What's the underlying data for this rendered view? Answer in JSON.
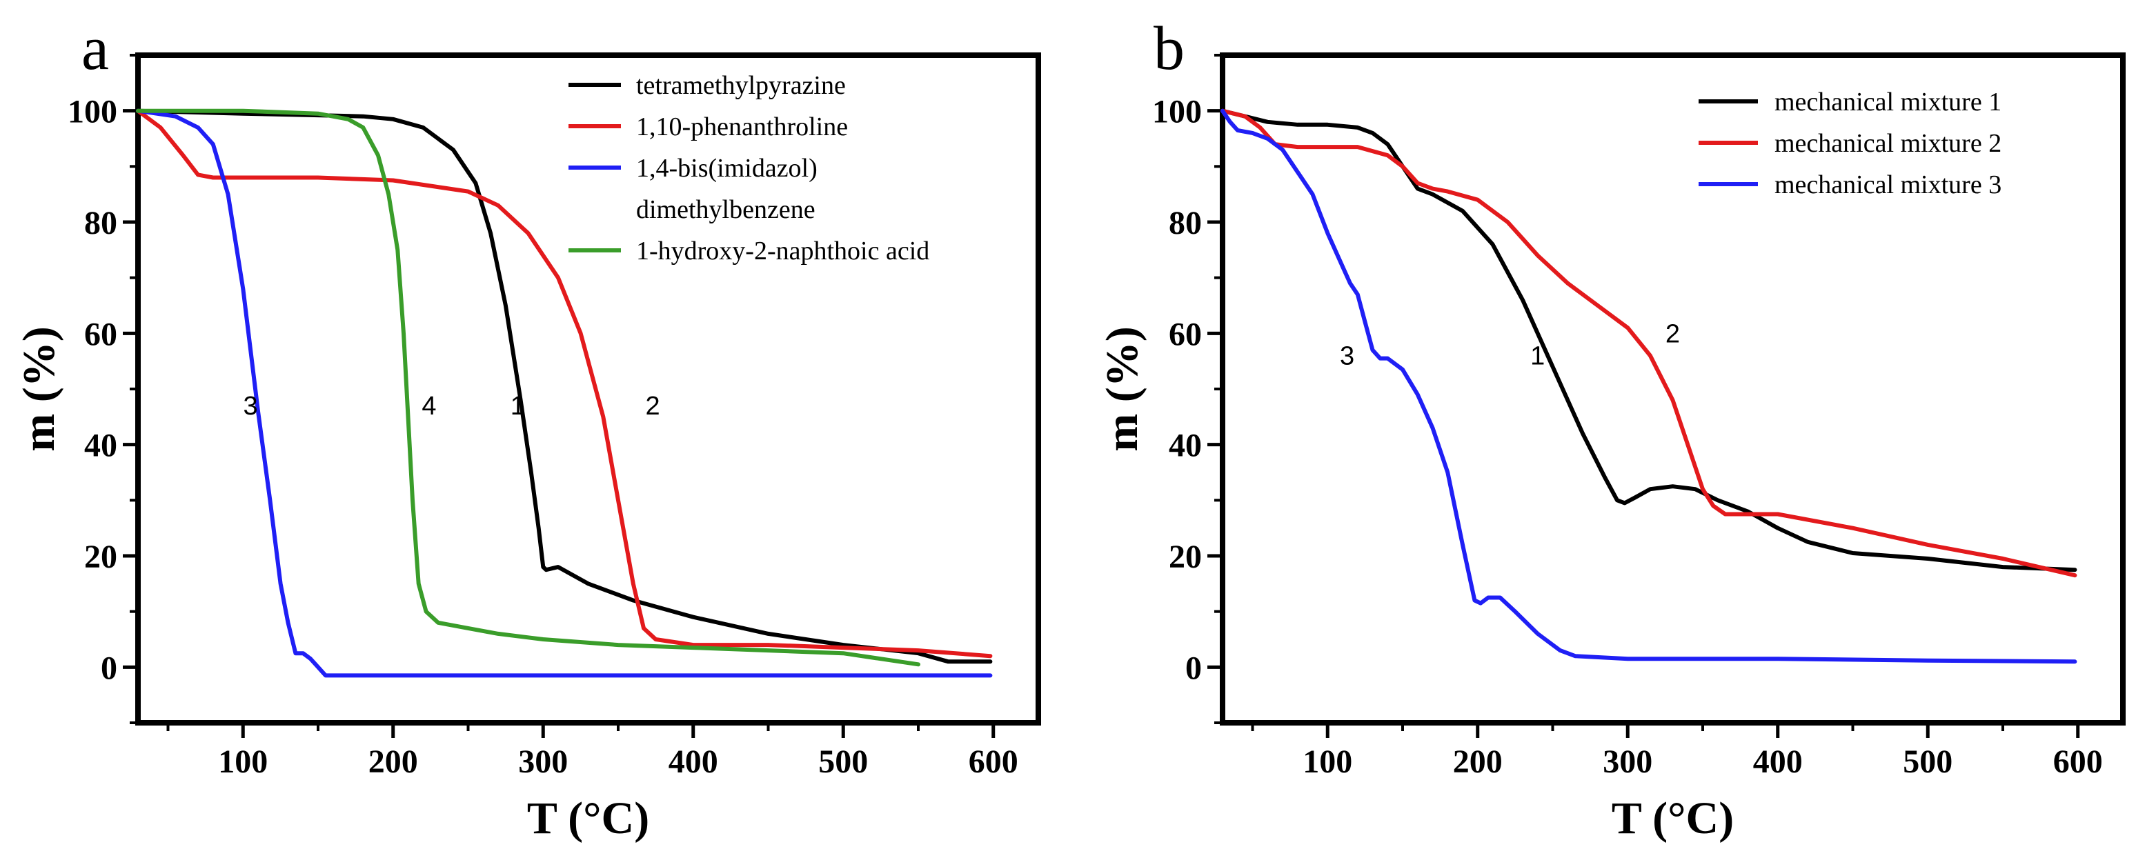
{
  "chart_data": [
    {
      "type": "line",
      "panel_label": "a",
      "xlabel": "T (°C)",
      "ylabel": "m (%)",
      "xlim": [
        30,
        630
      ],
      "ylim": [
        -10,
        110
      ],
      "xticks": [
        100,
        200,
        300,
        400,
        500,
        600
      ],
      "xtick_labels": [
        "100",
        "200",
        "300",
        "400",
        "500",
        "600"
      ],
      "yticks": [
        0,
        20,
        40,
        60,
        80,
        100
      ],
      "ytick_labels": [
        "0",
        "20",
        "40",
        "60",
        "80",
        "100"
      ],
      "legend_position": "top-right",
      "series": [
        {
          "name": "tetramethylpyrazine",
          "color": "#000000",
          "x": [
            30,
            100,
            150,
            180,
            200,
            220,
            240,
            255,
            265,
            275,
            285,
            292,
            297,
            300,
            302,
            310,
            330,
            360,
            400,
            450,
            500,
            550,
            570,
            598
          ],
          "y": [
            100,
            99.5,
            99.2,
            99,
            98.5,
            97,
            93,
            87,
            78,
            65,
            48,
            35,
            25,
            18,
            17.5,
            18,
            15,
            12,
            9,
            6,
            4,
            2.5,
            1,
            1
          ]
        },
        {
          "name": "1,10-phenanthroline",
          "color": "#e31a1c",
          "x": [
            30,
            45,
            60,
            70,
            80,
            150,
            200,
            250,
            270,
            290,
            310,
            325,
            340,
            350,
            360,
            367,
            375,
            400,
            450,
            500,
            550,
            598
          ],
          "y": [
            100,
            97,
            92,
            88.5,
            88,
            88,
            87.5,
            85.5,
            83,
            78,
            70,
            60,
            45,
            30,
            15,
            7,
            5,
            4,
            4,
            3.5,
            3,
            2
          ]
        },
        {
          "name": "1,4-bis(imidazol) dimethylbenzene",
          "color": "#1f1ff5",
          "x": [
            30,
            55,
            70,
            80,
            90,
            100,
            110,
            118,
            125,
            130,
            135,
            140,
            145,
            150,
            155,
            200,
            300,
            400,
            500,
            598
          ],
          "y": [
            100,
            99,
            97,
            94,
            85,
            68,
            46,
            30,
            15,
            8,
            2.5,
            2.5,
            1.5,
            0,
            -1.5,
            -1.5,
            -1.5,
            -1.5,
            -1.5,
            -1.5
          ]
        },
        {
          "name": "1-hydroxy-2-naphthoic acid",
          "color": "#3a9d2a",
          "x": [
            30,
            100,
            150,
            170,
            180,
            190,
            197,
            203,
            207,
            210,
            213,
            217,
            222,
            230,
            250,
            270,
            300,
            350,
            400,
            450,
            500,
            550
          ],
          "y": [
            100,
            100,
            99.5,
            98.5,
            97,
            92,
            85,
            75,
            60,
            45,
            30,
            15,
            10,
            8,
            7,
            6,
            5,
            4,
            3.5,
            3,
            2.5,
            0.5
          ]
        }
      ],
      "curve_labels": [
        {
          "text": "1",
          "x": 283,
          "y": 47
        },
        {
          "text": "2",
          "x": 373,
          "y": 47
        },
        {
          "text": "3",
          "x": 105,
          "y": 47
        },
        {
          "text": "4",
          "x": 224,
          "y": 47
        }
      ],
      "legend_entries": [
        {
          "label": "tetramethylpyrazine",
          "color": "#000000",
          "swatch": true
        },
        {
          "label": "1,10-phenanthroline",
          "color": "#e31a1c",
          "swatch": true
        },
        {
          "label": "1,4-bis(imidazol)",
          "color": "#1f1ff5",
          "swatch": true
        },
        {
          "label": "dimethylbenzene",
          "color": "#1f1ff5",
          "swatch": false
        },
        {
          "label": "1-hydroxy-2-naphthoic acid",
          "color": "#3a9d2a",
          "swatch": true
        }
      ]
    },
    {
      "type": "line",
      "panel_label": "b",
      "xlabel": "T (°C)",
      "ylabel": "m (%)",
      "xlim": [
        30,
        630
      ],
      "ylim": [
        -10,
        110
      ],
      "xticks": [
        100,
        200,
        300,
        400,
        500,
        600
      ],
      "xtick_labels": [
        "100",
        "200",
        "300",
        "400",
        "500",
        "600"
      ],
      "yticks": [
        0,
        20,
        40,
        60,
        80,
        100
      ],
      "ytick_labels": [
        "0",
        "20",
        "40",
        "60",
        "80",
        "100"
      ],
      "legend_position": "top-right",
      "series": [
        {
          "name": "mechanical mixture 1",
          "color": "#000000",
          "x": [
            30,
            45,
            60,
            80,
            100,
            120,
            130,
            140,
            150,
            160,
            170,
            190,
            210,
            230,
            250,
            270,
            285,
            293,
            298,
            305,
            315,
            330,
            345,
            360,
            380,
            400,
            420,
            450,
            500,
            550,
            598
          ],
          "y": [
            100,
            99,
            98,
            97.5,
            97.5,
            97,
            96,
            94,
            90,
            86,
            85,
            82,
            76,
            66,
            54,
            42,
            34,
            30,
            29.5,
            30.5,
            32,
            32.5,
            32,
            30,
            28,
            25,
            22.5,
            20.5,
            19.5,
            18,
            17.5
          ]
        },
        {
          "name": "mechanical mixture 2",
          "color": "#e31a1c",
          "x": [
            30,
            45,
            55,
            65,
            80,
            100,
            120,
            140,
            150,
            160,
            170,
            180,
            200,
            220,
            240,
            260,
            280,
            300,
            315,
            330,
            340,
            350,
            357,
            365,
            380,
            400,
            450,
            500,
            550,
            598
          ],
          "y": [
            100,
            99,
            97,
            94,
            93.5,
            93.5,
            93.5,
            92,
            90,
            87,
            86,
            85.5,
            84,
            80,
            74,
            69,
            65,
            61,
            56,
            48,
            40,
            32,
            29,
            27.5,
            27.5,
            27.5,
            25,
            22,
            19.5,
            16.5
          ]
        },
        {
          "name": "mechanical mixture 3",
          "color": "#1f1ff5",
          "x": [
            30,
            35,
            40,
            50,
            60,
            70,
            80,
            90,
            100,
            110,
            115,
            120,
            125,
            130,
            135,
            140,
            150,
            160,
            170,
            180,
            190,
            198,
            202,
            207,
            215,
            225,
            240,
            255,
            265,
            300,
            400,
            500,
            598
          ],
          "y": [
            100,
            98,
            96.5,
            96,
            95,
            93,
            89,
            85,
            78,
            72,
            69,
            67,
            62,
            57,
            55.5,
            55.5,
            53.5,
            49,
            43,
            35,
            22,
            12,
            11.5,
            12.5,
            12.5,
            10,
            6,
            3,
            2,
            1.5,
            1.5,
            1.2,
            1
          ]
        }
      ],
      "curve_labels": [
        {
          "text": "1",
          "x": 240,
          "y": 56
        },
        {
          "text": "2",
          "x": 330,
          "y": 60
        },
        {
          "text": "3",
          "x": 113,
          "y": 56
        }
      ],
      "legend_entries": [
        {
          "label": "mechanical mixture 1",
          "color": "#000000",
          "swatch": true
        },
        {
          "label": "mechanical mixture 2",
          "color": "#e31a1c",
          "swatch": true
        },
        {
          "label": "mechanical mixture 3",
          "color": "#1f1ff5",
          "swatch": true
        }
      ]
    }
  ]
}
